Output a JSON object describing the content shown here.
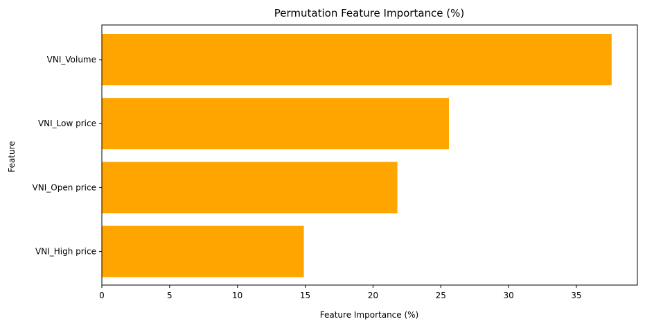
{
  "chart_data": {
    "type": "bar",
    "orientation": "horizontal",
    "title": "Permutation Feature Importance (%)",
    "xlabel": "Feature Importance (%)",
    "ylabel": "Feature",
    "categories": [
      "VNI_Volume",
      "VNI_Low price",
      "VNI_Open price",
      "VNI_High price"
    ],
    "values": [
      37.6,
      25.6,
      21.8,
      14.9
    ],
    "xlim": [
      0,
      39.5
    ],
    "xticks": [
      0,
      5,
      10,
      15,
      20,
      25,
      30,
      35
    ],
    "bar_color": "#ffa500",
    "grid": false
  }
}
